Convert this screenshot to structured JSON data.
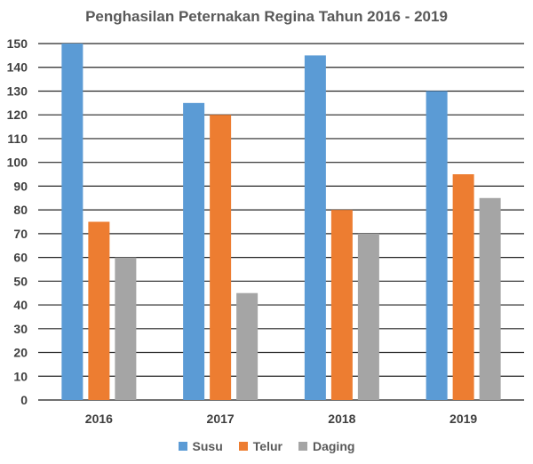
{
  "chart_data": {
    "type": "bar",
    "title": "Penghasilan Peternakan Regina Tahun 2016 - 2019",
    "categories": [
      "2016",
      "2017",
      "2018",
      "2019"
    ],
    "series": [
      {
        "name": "Susu",
        "color": "#5b9bd5",
        "values": [
          150,
          125,
          145,
          130
        ]
      },
      {
        "name": "Telur",
        "color": "#ed7d31",
        "values": [
          75,
          120,
          80,
          95
        ]
      },
      {
        "name": "Daging",
        "color": "#a5a5a5",
        "values": [
          60,
          45,
          70,
          85
        ]
      }
    ],
    "ylim": [
      0,
      150
    ],
    "yticks": [
      "0",
      "10",
      "20",
      "30",
      "40",
      "50",
      "60",
      "70",
      "80",
      "90",
      "100",
      "110",
      "120",
      "130",
      "140",
      "150"
    ],
    "grid": true,
    "legend_position": "bottom"
  }
}
